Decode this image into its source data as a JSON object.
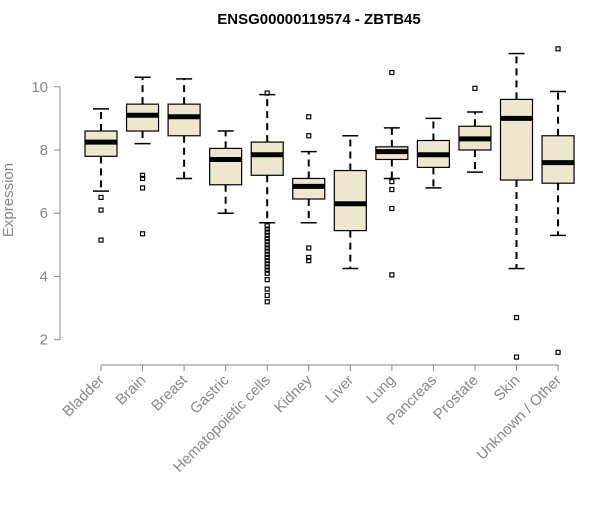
{
  "chart_data": {
    "type": "box",
    "title": "ENSG00000119574 - ZBTB45",
    "ylabel": "Expression",
    "xlabel": "",
    "ylim": [
      1.2,
      11.7
    ],
    "yticks": [
      2,
      4,
      6,
      8,
      10
    ],
    "grid": false,
    "legend": "none",
    "colors": {
      "box_fill": "#ede7cf",
      "box_stroke": "#000000",
      "axis": "#888888",
      "text": "#888888"
    },
    "categories": [
      "Bladder",
      "Brain",
      "Breast",
      "Gastric",
      "Hematopoietic cells",
      "Kidney",
      "Liver",
      "Lung",
      "Pancreas",
      "Prostate",
      "Skin",
      "Unknown / Other"
    ],
    "boxes": [
      {
        "category": "Bladder",
        "whisker_low": 6.7,
        "q1": 7.8,
        "median": 8.25,
        "q3": 8.6,
        "whisker_high": 9.3,
        "outliers": [
          6.5,
          6.1,
          5.15
        ]
      },
      {
        "category": "Brain",
        "whisker_low": 8.2,
        "q1": 8.6,
        "median": 9.1,
        "q3": 9.45,
        "whisker_high": 10.3,
        "outliers": [
          7.2,
          7.1,
          6.8,
          5.35
        ]
      },
      {
        "category": "Breast",
        "whisker_low": 7.1,
        "q1": 8.45,
        "median": 9.05,
        "q3": 9.45,
        "whisker_high": 10.25,
        "outliers": []
      },
      {
        "category": "Gastric",
        "whisker_low": 6.0,
        "q1": 6.9,
        "median": 7.7,
        "q3": 8.05,
        "whisker_high": 8.6,
        "outliers": []
      },
      {
        "category": "Hematopoietic cells",
        "whisker_low": 5.7,
        "q1": 7.2,
        "median": 7.85,
        "q3": 8.25,
        "whisker_high": 9.75,
        "outliers": [
          9.8,
          5.6,
          5.5,
          5.4,
          5.3,
          5.2,
          5.1,
          5.0,
          4.9,
          4.8,
          4.7,
          4.6,
          4.5,
          4.4,
          4.3,
          4.2,
          4.1,
          3.9,
          3.6,
          3.4,
          3.2
        ]
      },
      {
        "category": "Kidney",
        "whisker_low": 5.7,
        "q1": 6.45,
        "median": 6.85,
        "q3": 7.1,
        "whisker_high": 7.95,
        "outliers": [
          9.05,
          8.45,
          4.9,
          4.6,
          4.5
        ]
      },
      {
        "category": "Liver",
        "whisker_low": 4.25,
        "q1": 5.45,
        "median": 6.3,
        "q3": 7.35,
        "whisker_high": 8.45,
        "outliers": []
      },
      {
        "category": "Lung",
        "whisker_low": 7.1,
        "q1": 7.7,
        "median": 7.95,
        "q3": 8.1,
        "whisker_high": 8.7,
        "outliers": [
          10.45,
          7.0,
          6.75,
          6.15,
          4.05
        ]
      },
      {
        "category": "Pancreas",
        "whisker_low": 6.8,
        "q1": 7.45,
        "median": 7.85,
        "q3": 8.3,
        "whisker_high": 9.0,
        "outliers": []
      },
      {
        "category": "Prostate",
        "whisker_low": 7.3,
        "q1": 8.0,
        "median": 8.35,
        "q3": 8.75,
        "whisker_high": 9.2,
        "outliers": [
          9.95
        ]
      },
      {
        "category": "Skin",
        "whisker_low": 4.25,
        "q1": 7.05,
        "median": 9.0,
        "q3": 9.6,
        "whisker_high": 11.05,
        "outliers": [
          2.7,
          1.45
        ]
      },
      {
        "category": "Unknown / Other",
        "whisker_low": 5.3,
        "q1": 6.95,
        "median": 7.6,
        "q3": 8.45,
        "whisker_high": 9.85,
        "outliers": [
          11.2,
          1.6
        ]
      }
    ]
  }
}
